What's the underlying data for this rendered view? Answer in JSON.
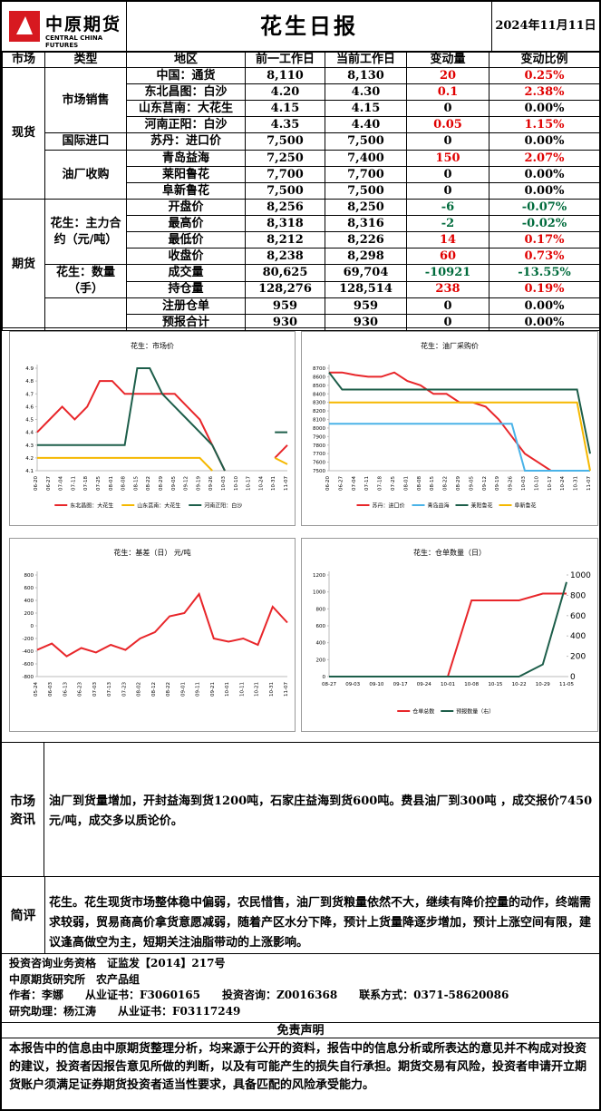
{
  "header": {
    "logo": "中原期货",
    "logo_en": "CENTRAL CHINA FUTURES",
    "title": "花生日报",
    "date": "2024年11月11日"
  },
  "table": {
    "columns": [
      "市场",
      "类型",
      "地区",
      "前一工作日",
      "当前工作日",
      "变动量",
      "变动比例"
    ],
    "sections": [
      {
        "market": "现货",
        "types": [
          {
            "type": "市场销售",
            "rows": [
              [
                "中国：通货",
                "8,110",
                "8,130",
                "20",
                "0.25%"
              ],
              [
                "东北昌图：白沙",
                "4.20",
                "4.30",
                "0.1",
                "2.38%"
              ],
              [
                "山东莒南：大花生",
                "4.15",
                "4.15",
                "0",
                "0.00%"
              ],
              [
                "河南正阳：白沙",
                "4.35",
                "4.40",
                "0.05",
                "1.15%"
              ]
            ]
          },
          {
            "type": "国际进口",
            "rows": [
              [
                "苏丹：进口价",
                "7,500",
                "7,500",
                "0",
                "0.00%"
              ]
            ]
          },
          {
            "type": "油厂收购",
            "rows": [
              [
                "青岛益海",
                "7,250",
                "7,400",
                "150",
                "2.07%"
              ],
              [
                "莱阳鲁花",
                "7,700",
                "7,700",
                "0",
                "0.00%"
              ],
              [
                "阜新鲁花",
                "7,500",
                "7,500",
                "0",
                "0.00%"
              ]
            ]
          }
        ]
      },
      {
        "market": "期货",
        "types": [
          {
            "type": "花生：主力合约（元/吨）",
            "rows": [
              [
                "开盘价",
                "8,256",
                "8,250",
                "-6",
                "-0.07%"
              ],
              [
                "最高价",
                "8,318",
                "8,316",
                "-2",
                "-0.02%"
              ],
              [
                "最低价",
                "8,212",
                "8,226",
                "14",
                "0.17%"
              ],
              [
                "收盘价",
                "8,238",
                "8,298",
                "60",
                "0.73%"
              ]
            ]
          },
          {
            "type": "花生：数量（手）",
            "rows": [
              [
                "成交量",
                "80,625",
                "69,704",
                "-10921",
                "-13.55%"
              ],
              [
                "持仓量",
                "128,276",
                "128,514",
                "238",
                "0.19%"
              ]
            ]
          },
          {
            "rows": [
              [
                "注册仓单",
                "959",
                "959",
                "0",
                "0.00%"
              ],
              [
                "预报合计",
                "930",
                "930",
                "0",
                "0.00%"
              ]
            ]
          }
        ]
      }
    ]
  },
  "charts": [
    {
      "type": "line",
      "title": "花生：市场价",
      "categories": [
        "06-20",
        "06-27",
        "07-04",
        "07-11",
        "07-18",
        "07-25",
        "08-01",
        "08-08",
        "08-15",
        "08-22",
        "08-29",
        "09-05",
        "09-12",
        "09-19",
        "09-26",
        "10-03",
        "10-10",
        "10-17",
        "10-24",
        "10-31",
        "11-07"
      ],
      "ylim": [
        4.1,
        4.9
      ],
      "yticks": [
        4.1,
        4.2,
        4.3,
        4.4,
        4.5,
        4.6,
        4.7,
        4.8,
        4.9
      ],
      "series": [
        {
          "name": "东北昌图：大花生",
          "color": "#e8262a",
          "values": [
            4.4,
            4.5,
            4.6,
            4.5,
            4.6,
            4.8,
            4.8,
            4.7,
            4.7,
            4.7,
            4.7,
            4.7,
            4.6,
            4.5,
            4.3,
            4.1,
            null,
            null,
            null,
            4.2,
            4.3
          ]
        },
        {
          "name": "山东莒南：大花生",
          "color": "#f5b800",
          "values": [
            4.2,
            4.2,
            4.2,
            4.2,
            4.2,
            4.2,
            4.2,
            4.2,
            4.2,
            4.2,
            4.2,
            4.2,
            4.2,
            4.2,
            4.1,
            null,
            null,
            null,
            null,
            4.2,
            4.15
          ]
        },
        {
          "name": "河南正阳：白沙",
          "color": "#1d5e4a",
          "values": [
            4.3,
            4.3,
            4.3,
            4.3,
            4.3,
            4.3,
            4.3,
            4.3,
            4.9,
            4.9,
            4.7,
            4.6,
            4.5,
            4.4,
            4.3,
            4.1,
            null,
            null,
            null,
            4.4,
            4.4
          ]
        }
      ]
    },
    {
      "type": "line",
      "title": "花生：油厂采购价",
      "categories": [
        "06-20",
        "06-27",
        "07-04",
        "07-11",
        "07-18",
        "07-25",
        "08-01",
        "08-08",
        "08-15",
        "08-22",
        "08-29",
        "09-05",
        "09-12",
        "09-19",
        "09-26",
        "10-03",
        "10-10",
        "10-17",
        "10-24",
        "10-31",
        "11-07"
      ],
      "ylim": [
        7500,
        8700
      ],
      "yticks": [
        7500,
        7600,
        7700,
        7800,
        7900,
        8000,
        8100,
        8200,
        8300,
        8400,
        8500,
        8600,
        8700
      ],
      "series": [
        {
          "name": "苏丹：进口价",
          "color": "#e8262a",
          "values": [
            8650,
            8650,
            8620,
            8600,
            8600,
            8650,
            8550,
            8500,
            8400,
            8400,
            8300,
            8300,
            8250,
            8100,
            7900,
            7700,
            7600,
            7500,
            7500,
            7500,
            7500
          ]
        },
        {
          "name": "青岛益海",
          "color": "#4ab3e8",
          "values": [
            8050,
            8050,
            8050,
            8050,
            8050,
            8050,
            8050,
            8050,
            8050,
            8050,
            8050,
            8050,
            8050,
            8050,
            8050,
            7500,
            7500,
            7500,
            7500,
            7500,
            7500
          ]
        },
        {
          "name": "莱阳鲁花",
          "color": "#1d5e4a",
          "values": [
            8650,
            8450,
            8450,
            8450,
            8450,
            8450,
            8450,
            8450,
            8450,
            8450,
            8450,
            8450,
            8450,
            8450,
            8450,
            8450,
            8450,
            8450,
            8450,
            8450,
            7700
          ]
        },
        {
          "name": "阜新鲁花",
          "color": "#f5b800",
          "values": [
            8300,
            8300,
            8300,
            8300,
            8300,
            8300,
            8300,
            8300,
            8300,
            8300,
            8300,
            8300,
            8300,
            8300,
            8300,
            8300,
            8300,
            8300,
            8300,
            8300,
            7500
          ]
        }
      ]
    },
    {
      "type": "line",
      "title": "花生：基差（日）  元/吨",
      "categories": [
        "05-24",
        "06-03",
        "06-13",
        "06-23",
        "07-03",
        "07-13",
        "07-23",
        "08-02",
        "08-12",
        "08-22",
        "09-01",
        "09-11",
        "09-21",
        "10-01",
        "10-11",
        "10-21",
        "10-31",
        "11-07"
      ],
      "ylim": [
        -800,
        800
      ],
      "yticks": [
        -800,
        -600,
        -400,
        -200,
        0,
        200,
        400,
        600,
        800
      ],
      "series": [
        {
          "color": "#e8262a",
          "values": [
            -380,
            -280,
            -480,
            -350,
            -420,
            -300,
            -380,
            -200,
            -100,
            150,
            200,
            500,
            -200,
            -250,
            -200,
            -300,
            300,
            50
          ]
        }
      ]
    },
    {
      "type": "line",
      "title": "花生：仓单数量（日）",
      "categories": [
        "08-27",
        "09-03",
        "09-10",
        "09-17",
        "09-24",
        "10-01",
        "10-08",
        "10-15",
        "10-22",
        "10-29",
        "11-05"
      ],
      "ylim": [
        0,
        1200
      ],
      "yticks": [
        0,
        200,
        400,
        600,
        800,
        1000,
        1200
      ],
      "y2lim": [
        0,
        1000
      ],
      "y2ticks": [
        0,
        200,
        400,
        600,
        800,
        1000
      ],
      "series": [
        {
          "name": "仓单总数",
          "color": "#e8262a",
          "values": [
            0,
            0,
            0,
            0,
            0,
            0,
            900,
            900,
            900,
            980,
            980
          ]
        },
        {
          "name": "预报数量（右）",
          "color": "#1d5e4a",
          "axis": "y2",
          "values": [
            0,
            0,
            0,
            0,
            0,
            0,
            0,
            0,
            0,
            120,
            930
          ]
        }
      ]
    }
  ],
  "news": {
    "label": "市场资讯",
    "text": "油厂到货量增加，开封益海到货1200吨，石家庄益海到货600吨。费县油厂到300吨 ，成交报价7450元/吨，成交多以质论价。"
  },
  "review": {
    "label": "简评",
    "text": "花生。花生现货市场整体稳中偏弱，农民惜售，油厂到货粮量依然不大，继续有降价控量的动作，终端需求较弱，贸易商高价拿货意愿减弱，随着产区水分下降，预计上货量降逐步增加，预计上涨空间有限，建议逢高做空为主，短期关注油脂带动的上涨影响。"
  },
  "info": [
    "投资咨询业务资格　证监发【2014】217号",
    "中原期货研究所　农产品组",
    "作者：李娜　　从业证书：F3060165　　投资咨询：Z0016368　　联系方式：0371-58620086",
    "研究助理：杨江涛　　从业证书：F03117249"
  ],
  "disclaimer": {
    "title": "免责声明",
    "text": "本报告中的信息由中原期货整理分析，均来源于公开的资料，报告中的信息分析或所表达的意见并不构成对投资的建议，投资者因报告意见所做的判断，以及有可能产生的损失自行承担。期货交易有风险，投资者申请开立期货账户须满足证券期货投资者适当性要求，具备匹配的风险承受能力。"
  }
}
